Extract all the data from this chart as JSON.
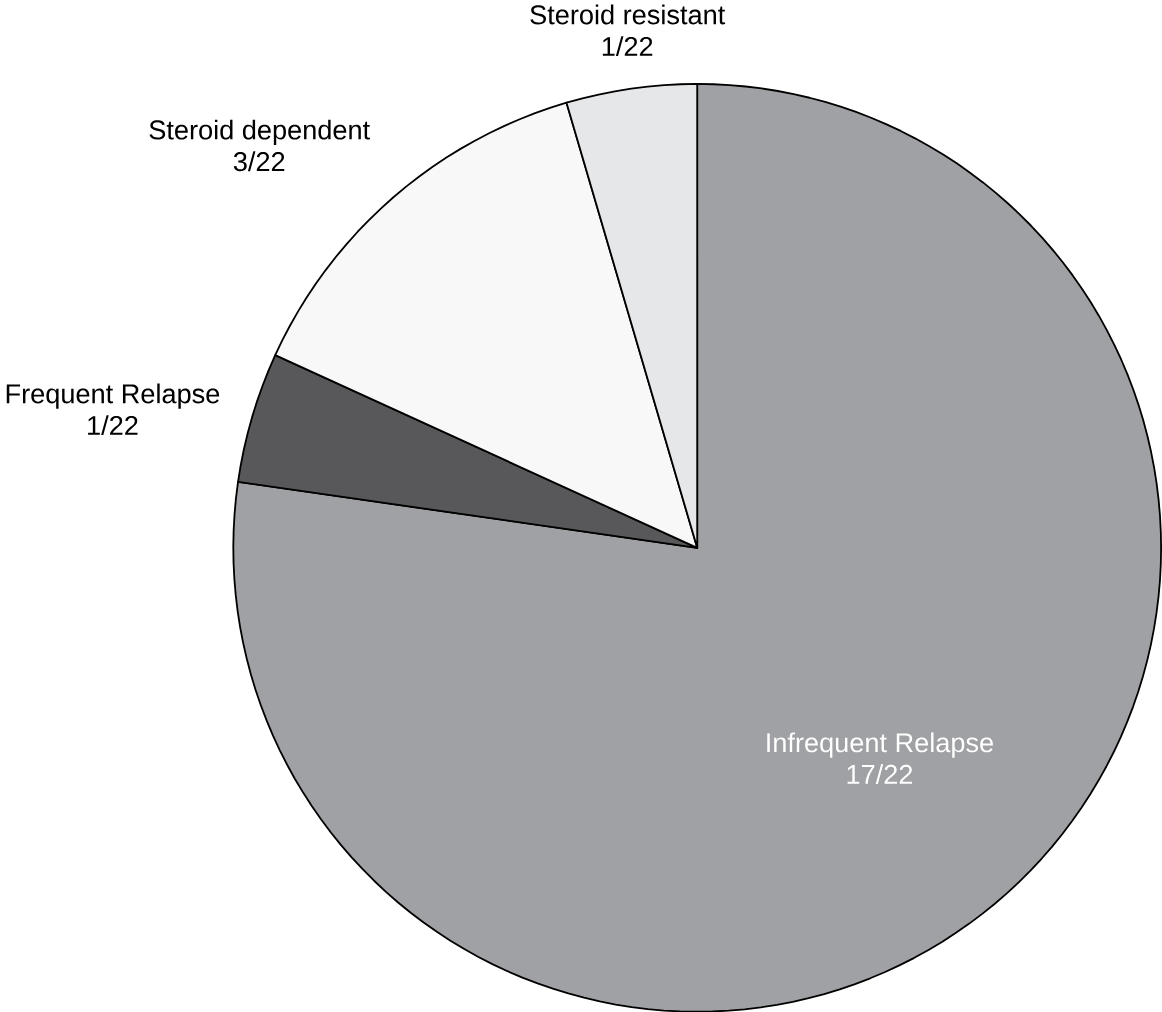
{
  "chart_data": {
    "type": "pie",
    "categories": [
      "Infrequent Relapse",
      "Frequent Relapse",
      "Steroid dependent",
      "Steroid resistant"
    ],
    "values": [
      17,
      1,
      3,
      1
    ],
    "value_labels": [
      "17/22",
      "1/22",
      "3/22",
      "1/22"
    ],
    "colors": [
      "#a0a1a4",
      "#58585a",
      "#f8f8f8",
      "#e6e7e9"
    ]
  }
}
